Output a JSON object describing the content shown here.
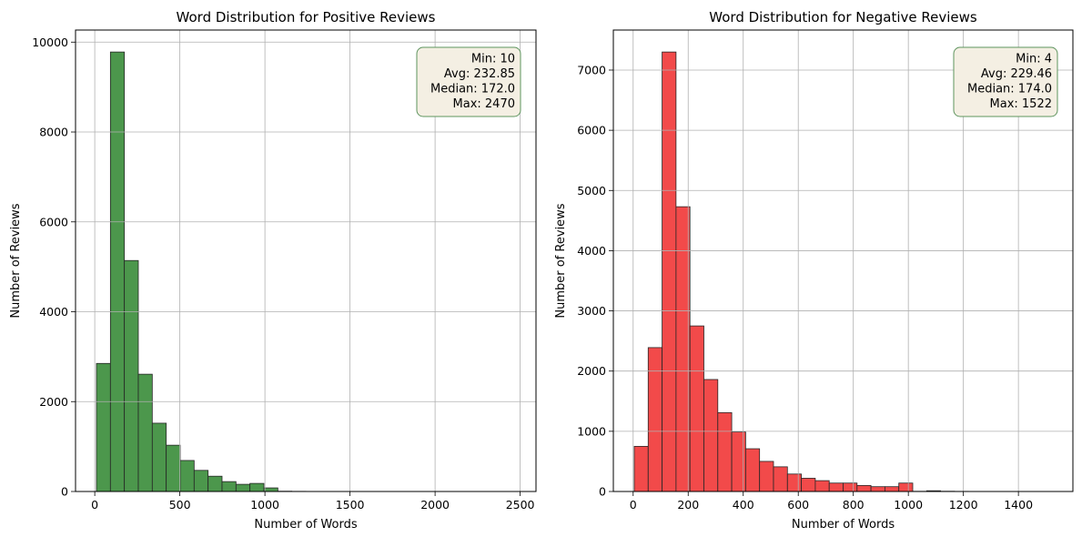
{
  "style": {
    "background": "#ffffff",
    "grid_color": "#b0b0b0",
    "axis_color": "#000000"
  },
  "chart_data": [
    {
      "type": "bar",
      "title": "Word Distribution for Positive Reviews",
      "xlabel": "Number of Words",
      "ylabel": "Number of Reviews",
      "bin_range": [
        10,
        2470
      ],
      "bins": 30,
      "counts": [
        2850,
        9780,
        5140,
        2610,
        1520,
        1030,
        690,
        470,
        340,
        220,
        160,
        180,
        80,
        6,
        3,
        2,
        1,
        1,
        0,
        1,
        0,
        0,
        0,
        0,
        0,
        0,
        0,
        0,
        0,
        1
      ],
      "xlim": [
        -113,
        2593
      ],
      "ylim": [
        0,
        10269
      ],
      "xticks": [
        0,
        500,
        1000,
        1500,
        2000,
        2500
      ],
      "xtick_labels": [
        "0",
        "500",
        "1000",
        "1500",
        "2000",
        "2500"
      ],
      "yticks": [
        0,
        2000,
        4000,
        6000,
        8000,
        10000
      ],
      "ytick_labels": [
        "0",
        "2000",
        "4000",
        "6000",
        "8000",
        "10000"
      ],
      "grid": true,
      "bar_color": "#4c974c",
      "edge_color": "#262626",
      "stats": [
        "Min: 10",
        "Avg: 232.85",
        "Median: 172.0",
        "Max: 2470"
      ],
      "stats_box_color": "#f4efe3",
      "stats_border_color": "#5e945e"
    },
    {
      "type": "bar",
      "title": "Word Distribution for Negative Reviews",
      "xlabel": "Number of Words",
      "ylabel": "Number of Reviews",
      "bin_range": [
        4,
        1522
      ],
      "bins": 30,
      "counts": [
        750,
        2390,
        7300,
        4730,
        2750,
        1860,
        1310,
        990,
        710,
        500,
        410,
        290,
        220,
        180,
        140,
        140,
        100,
        80,
        80,
        140,
        3,
        12,
        4,
        2,
        1,
        1,
        0,
        1,
        0,
        1
      ],
      "xlim": [
        -72,
        1598
      ],
      "ylim": [
        0,
        7665
      ],
      "xticks": [
        0,
        200,
        400,
        600,
        800,
        1000,
        1200,
        1400
      ],
      "xtick_labels": [
        "0",
        "200",
        "400",
        "600",
        "800",
        "1000",
        "1200",
        "1400"
      ],
      "yticks": [
        0,
        1000,
        2000,
        3000,
        4000,
        5000,
        6000,
        7000
      ],
      "ytick_labels": [
        "0",
        "1000",
        "2000",
        "3000",
        "4000",
        "5000",
        "6000",
        "7000"
      ],
      "grid": true,
      "bar_color": "#f24a4a",
      "edge_color": "#262626",
      "stats": [
        "Min: 4",
        "Avg: 229.46",
        "Median: 174.0",
        "Max: 1522"
      ],
      "stats_box_color": "#f4efe3",
      "stats_border_color": "#5e945e"
    }
  ]
}
